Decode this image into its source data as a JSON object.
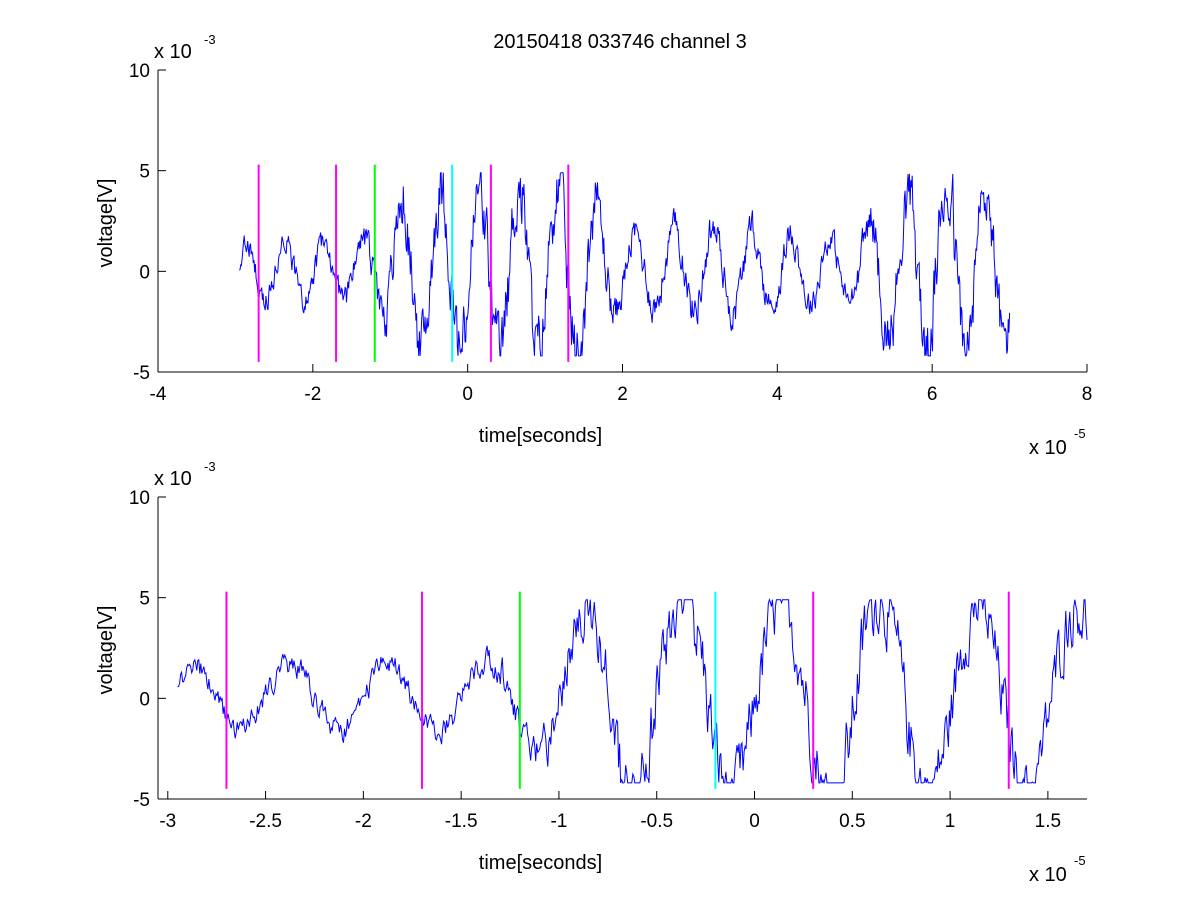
{
  "title": "20150418 033746 channel 3",
  "chart_data": [
    {
      "type": "line",
      "title": "20150418 033746 channel 3",
      "xlabel": "time[seconds]",
      "ylabel": "voltage[V]",
      "x_multiplier_label": "x 10",
      "x_multiplier_exp": "-5",
      "y_multiplier_label": "x 10",
      "y_multiplier_exp": "-3",
      "xlim": [
        -4,
        8
      ],
      "ylim": [
        -5,
        10
      ],
      "xticks": [
        -4,
        -2,
        0,
        2,
        4,
        6,
        8
      ],
      "xtick_labels": [
        "-4",
        "-2",
        "0",
        "2",
        "4",
        "6",
        "8"
      ],
      "yticks": [
        -5,
        0,
        5,
        10
      ],
      "ytick_labels": [
        "-5",
        "0",
        "5",
        "10"
      ],
      "grid": false,
      "series": [
        {
          "color": "#0000ff",
          "x_start": -2.95,
          "x_end": 7.0,
          "points": 1100,
          "amplitude_envelope": [
            [
              -2.95,
              0.9
            ],
            [
              -1.3,
              1.1
            ],
            [
              -0.8,
              2.6
            ],
            [
              1.5,
              3.0
            ],
            [
              2.0,
              1.2
            ],
            [
              3.0,
              1.5
            ],
            [
              5.0,
              1.0
            ],
            [
              5.3,
              2.2
            ],
            [
              6.3,
              3.0
            ],
            [
              7.0,
              2.4
            ]
          ]
        }
      ],
      "markers": [
        {
          "x": -2.7,
          "color": "#ff00ff",
          "y_range": [
            -4.5,
            5.3
          ]
        },
        {
          "x": -1.7,
          "color": "#ff00ff",
          "y_range": [
            -4.5,
            5.3
          ]
        },
        {
          "x": -1.2,
          "color": "#00ff00",
          "y_range": [
            -4.5,
            5.3
          ]
        },
        {
          "x": -0.2,
          "color": "#00ffff",
          "y_range": [
            -4.5,
            5.3
          ]
        },
        {
          "x": 0.3,
          "color": "#ff00ff",
          "y_range": [
            -4.5,
            5.3
          ]
        },
        {
          "x": 1.3,
          "color": "#ff00ff",
          "y_range": [
            -4.5,
            5.3
          ]
        }
      ]
    },
    {
      "type": "line",
      "xlabel": "time[seconds]",
      "ylabel": "voltage[V]",
      "x_multiplier_label": "x 10",
      "x_multiplier_exp": "-5",
      "y_multiplier_label": "x 10",
      "y_multiplier_exp": "-3",
      "xlim": [
        -3.05,
        1.7
      ],
      "ylim": [
        -5,
        10
      ],
      "xticks": [
        -3,
        -2.5,
        -2,
        -1.5,
        -1,
        -0.5,
        0,
        0.5,
        1,
        1.5
      ],
      "xtick_labels": [
        "-3",
        "-2.5",
        "-2",
        "-1.5",
        "-1",
        "-0.5",
        "0",
        "0.5",
        "1",
        "1.5"
      ],
      "yticks": [
        -5,
        0,
        5,
        10
      ],
      "ytick_labels": [
        "-5",
        "0",
        "5",
        "10"
      ],
      "grid": false,
      "series": [
        {
          "color": "#0000ff",
          "x_start": -2.95,
          "x_end": 1.7,
          "points": 900,
          "amplitude_envelope": [
            [
              -2.95,
              0.9
            ],
            [
              -1.4,
              1.0
            ],
            [
              -1.0,
              2.0
            ],
            [
              -0.65,
              3.2
            ],
            [
              0.2,
              2.6
            ],
            [
              0.5,
              3.2
            ],
            [
              0.9,
              2.6
            ],
            [
              1.7,
              2.6
            ]
          ]
        }
      ],
      "markers": [
        {
          "x": -2.7,
          "color": "#ff00ff",
          "y_range": [
            -4.5,
            5.3
          ]
        },
        {
          "x": -1.7,
          "color": "#ff00ff",
          "y_range": [
            -4.5,
            5.3
          ]
        },
        {
          "x": -1.2,
          "color": "#00ff00",
          "y_range": [
            -4.5,
            5.3
          ]
        },
        {
          "x": -0.2,
          "color": "#00ffff",
          "y_range": [
            -4.5,
            5.3
          ]
        },
        {
          "x": 0.3,
          "color": "#ff00ff",
          "y_range": [
            -4.5,
            5.3
          ]
        },
        {
          "x": 1.3,
          "color": "#ff00ff",
          "y_range": [
            -4.5,
            5.3
          ]
        }
      ]
    }
  ]
}
